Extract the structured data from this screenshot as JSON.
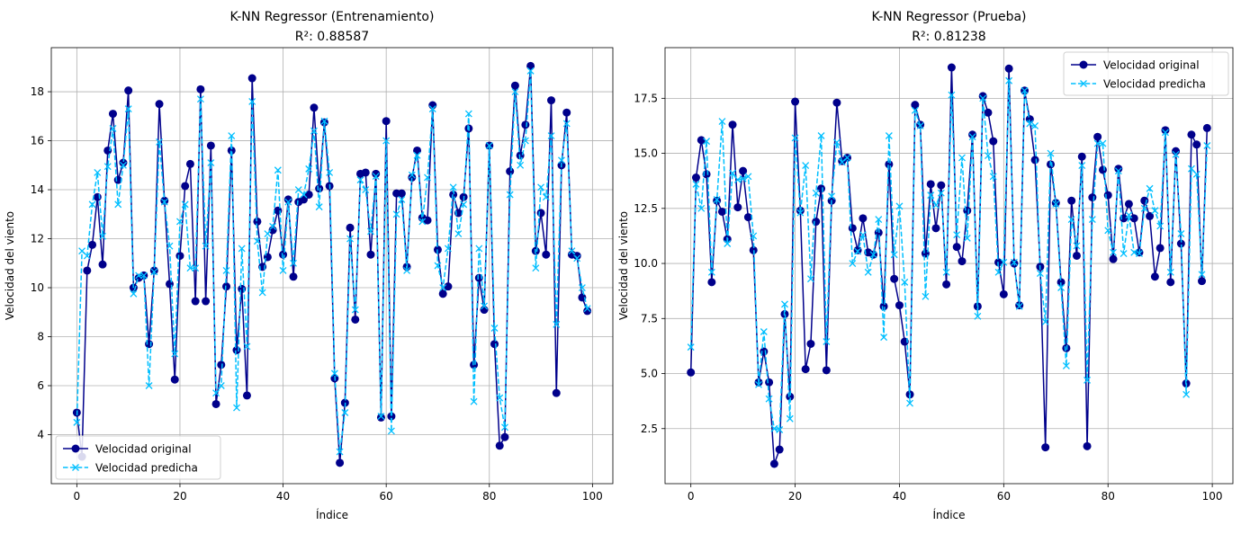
{
  "colors": {
    "original": "#00008b",
    "predicted": "#00bfff",
    "grid": "#b0b0b0",
    "axis": "#000000"
  },
  "chart_data": [
    {
      "type": "line",
      "title": "K-NN Regressor (Entrenamiento)",
      "subtitle": "R²: 0.88587",
      "xlabel": "Índice",
      "ylabel": "Velocidad del viento",
      "xlim": [
        -4.95,
        103.95
      ],
      "ylim": [
        2.0,
        19.8
      ],
      "xticks": [
        0,
        20,
        40,
        60,
        80,
        100
      ],
      "yticks": [
        4,
        6,
        8,
        10,
        12,
        14,
        16,
        18
      ],
      "grid": true,
      "legend_position": "lower-left",
      "x": [
        0,
        1,
        2,
        3,
        4,
        5,
        6,
        7,
        8,
        9,
        10,
        11,
        12,
        13,
        14,
        15,
        16,
        17,
        18,
        19,
        20,
        21,
        22,
        23,
        24,
        25,
        26,
        27,
        28,
        29,
        30,
        31,
        32,
        33,
        34,
        35,
        36,
        37,
        38,
        39,
        40,
        41,
        42,
        43,
        44,
        45,
        46,
        47,
        48,
        49,
        50,
        51,
        52,
        53,
        54,
        55,
        56,
        57,
        58,
        59,
        60,
        61,
        62,
        63,
        64,
        65,
        66,
        67,
        68,
        69,
        70,
        71,
        72,
        73,
        74,
        75,
        76,
        77,
        78,
        79,
        80,
        81,
        82,
        83,
        84,
        85,
        86,
        87,
        88,
        89,
        90,
        91,
        92,
        93,
        94,
        95,
        96,
        97,
        98,
        99
      ],
      "series": [
        {
          "name": "Velocidad original",
          "marker": "circle",
          "style": "solid",
          "values": [
            4.9,
            3.1,
            10.7,
            11.75,
            13.7,
            10.95,
            15.6,
            17.1,
            14.4,
            15.1,
            18.05,
            10.0,
            10.4,
            10.5,
            7.7,
            10.7,
            17.5,
            13.55,
            10.15,
            6.25,
            11.3,
            14.15,
            15.05,
            9.45,
            18.1,
            9.45,
            15.8,
            5.25,
            6.85,
            10.05,
            15.6,
            7.45,
            9.95,
            5.6,
            18.55,
            12.7,
            10.85,
            11.25,
            12.35,
            13.15,
            11.35,
            13.6,
            10.45,
            13.5,
            13.6,
            13.8,
            17.35,
            14.05,
            16.75,
            14.15,
            6.3,
            2.85,
            5.3,
            12.45,
            8.7,
            14.65,
            14.7,
            11.35,
            14.65,
            4.7,
            16.8,
            4.75,
            13.85,
            13.85,
            10.85,
            14.5,
            15.6,
            12.85,
            12.75,
            17.45,
            11.55,
            9.75,
            10.05,
            13.8,
            13.05,
            13.7,
            16.5,
            6.85,
            10.4,
            9.1,
            15.8,
            7.7,
            3.55,
            3.9,
            14.75,
            18.25,
            15.4,
            16.65,
            19.05,
            11.5,
            13.05,
            11.35,
            17.65,
            5.7,
            15.0,
            17.15,
            11.35,
            11.3,
            9.6,
            9.05
          ]
        },
        {
          "name": "Velocidad predicha",
          "marker": "x",
          "style": "dashed",
          "values": [
            4.5,
            11.5,
            11.3,
            13.4,
            14.7,
            12.1,
            14.95,
            16.5,
            13.4,
            15.0,
            17.3,
            9.75,
            10.5,
            10.5,
            6.0,
            10.65,
            15.95,
            13.5,
            11.7,
            7.3,
            12.7,
            13.4,
            10.8,
            10.8,
            17.7,
            11.7,
            15.1,
            5.7,
            6.0,
            10.7,
            16.2,
            5.1,
            11.6,
            7.6,
            17.6,
            11.9,
            9.8,
            12.2,
            12.5,
            14.8,
            10.7,
            13.5,
            11.0,
            14.0,
            13.8,
            14.85,
            16.4,
            13.3,
            16.8,
            14.7,
            6.5,
            3.3,
            4.9,
            12.0,
            9.1,
            14.4,
            14.0,
            12.3,
            14.55,
            4.75,
            16.0,
            4.15,
            13.0,
            13.6,
            10.7,
            14.6,
            15.4,
            12.7,
            14.5,
            17.3,
            10.9,
            10.0,
            11.6,
            14.1,
            12.2,
            13.4,
            17.1,
            5.35,
            11.6,
            9.25,
            15.8,
            8.35,
            5.5,
            4.3,
            13.8,
            18.0,
            15.0,
            16.0,
            18.85,
            10.8,
            14.1,
            13.7,
            16.2,
            8.5,
            15.2,
            16.7,
            11.5,
            11.2,
            10.0,
            9.15
          ]
        }
      ]
    },
    {
      "type": "line",
      "title": "K-NN Regressor (Prueba)",
      "subtitle": "R²: 0.81238",
      "xlabel": "Índice",
      "ylabel": "Velocidad del viento",
      "xlim": [
        -4.95,
        103.95
      ],
      "ylim": [
        0.0,
        19.8
      ],
      "xticks": [
        0,
        20,
        40,
        60,
        80,
        100
      ],
      "yticks": [
        2.5,
        5.0,
        7.5,
        10.0,
        12.5,
        15.0,
        17.5
      ],
      "grid": true,
      "legend_position": "upper-right",
      "x": [
        0,
        1,
        2,
        3,
        4,
        5,
        6,
        7,
        8,
        9,
        10,
        11,
        12,
        13,
        14,
        15,
        16,
        17,
        18,
        19,
        20,
        21,
        22,
        23,
        24,
        25,
        26,
        27,
        28,
        29,
        30,
        31,
        32,
        33,
        34,
        35,
        36,
        37,
        38,
        39,
        40,
        41,
        42,
        43,
        44,
        45,
        46,
        47,
        48,
        49,
        50,
        51,
        52,
        53,
        54,
        55,
        56,
        57,
        58,
        59,
        60,
        61,
        62,
        63,
        64,
        65,
        66,
        67,
        68,
        69,
        70,
        71,
        72,
        73,
        74,
        75,
        76,
        77,
        78,
        79,
        80,
        81,
        82,
        83,
        84,
        85,
        86,
        87,
        88,
        89,
        90,
        91,
        92,
        93,
        94,
        95,
        96,
        97,
        98,
        99
      ],
      "series": [
        {
          "name": "Velocidad original",
          "marker": "circle",
          "style": "solid",
          "values": [
            5.05,
            13.9,
            15.6,
            14.05,
            9.15,
            12.85,
            12.35,
            11.1,
            16.3,
            12.55,
            14.2,
            12.1,
            10.6,
            4.6,
            6.0,
            4.6,
            0.9,
            1.55,
            7.7,
            3.95,
            17.35,
            12.4,
            5.2,
            6.35,
            11.9,
            13.4,
            5.15,
            12.85,
            17.3,
            14.65,
            14.8,
            11.6,
            10.6,
            12.05,
            10.5,
            10.4,
            11.4,
            8.05,
            14.5,
            9.3,
            8.1,
            6.45,
            4.05,
            17.2,
            16.3,
            10.45,
            13.6,
            11.6,
            13.55,
            9.05,
            18.9,
            10.75,
            10.1,
            12.4,
            15.85,
            8.05,
            17.6,
            16.85,
            15.55,
            10.05,
            8.6,
            18.85,
            10.0,
            8.1,
            17.85,
            16.55,
            14.7,
            9.85,
            1.65,
            14.5,
            12.75,
            9.15,
            6.15,
            12.85,
            10.35,
            14.85,
            1.7,
            13.0,
            15.75,
            14.25,
            13.1,
            10.2,
            14.3,
            12.05,
            12.7,
            12.05,
            10.5,
            12.85,
            12.15,
            9.4,
            10.7,
            16.05,
            9.15,
            15.1,
            10.9,
            4.55,
            15.85,
            15.4,
            9.2,
            16.15
          ]
        },
        {
          "name": "Velocidad predicha",
          "marker": "x",
          "style": "dashed",
          "values": [
            6.2,
            13.6,
            12.5,
            15.55,
            9.6,
            12.9,
            16.45,
            10.9,
            14.1,
            13.8,
            13.85,
            13.95,
            11.25,
            4.5,
            6.9,
            3.85,
            2.5,
            2.45,
            8.15,
            2.95,
            15.7,
            12.3,
            14.45,
            9.3,
            13.2,
            15.8,
            6.45,
            13.05,
            15.5,
            14.6,
            14.8,
            10.0,
            10.55,
            11.3,
            9.6,
            10.4,
            12.0,
            6.65,
            15.8,
            10.4,
            12.6,
            9.15,
            3.65,
            16.95,
            16.25,
            8.5,
            13.1,
            12.65,
            13.2,
            9.6,
            17.65,
            11.3,
            14.8,
            11.15,
            15.75,
            7.6,
            17.5,
            14.9,
            13.95,
            9.6,
            10.05,
            18.3,
            10.05,
            8.05,
            17.85,
            16.35,
            16.25,
            9.55,
            7.35,
            15.0,
            12.7,
            8.9,
            5.35,
            12.0,
            10.8,
            14.45,
            4.7,
            12.0,
            15.45,
            15.45,
            11.5,
            10.5,
            14.2,
            10.45,
            12.2,
            10.5,
            10.45,
            12.5,
            13.4,
            12.4,
            11.7,
            15.95,
            9.6,
            14.95,
            11.35,
            4.05,
            14.3,
            14.05,
            9.5,
            15.35
          ]
        }
      ]
    }
  ]
}
